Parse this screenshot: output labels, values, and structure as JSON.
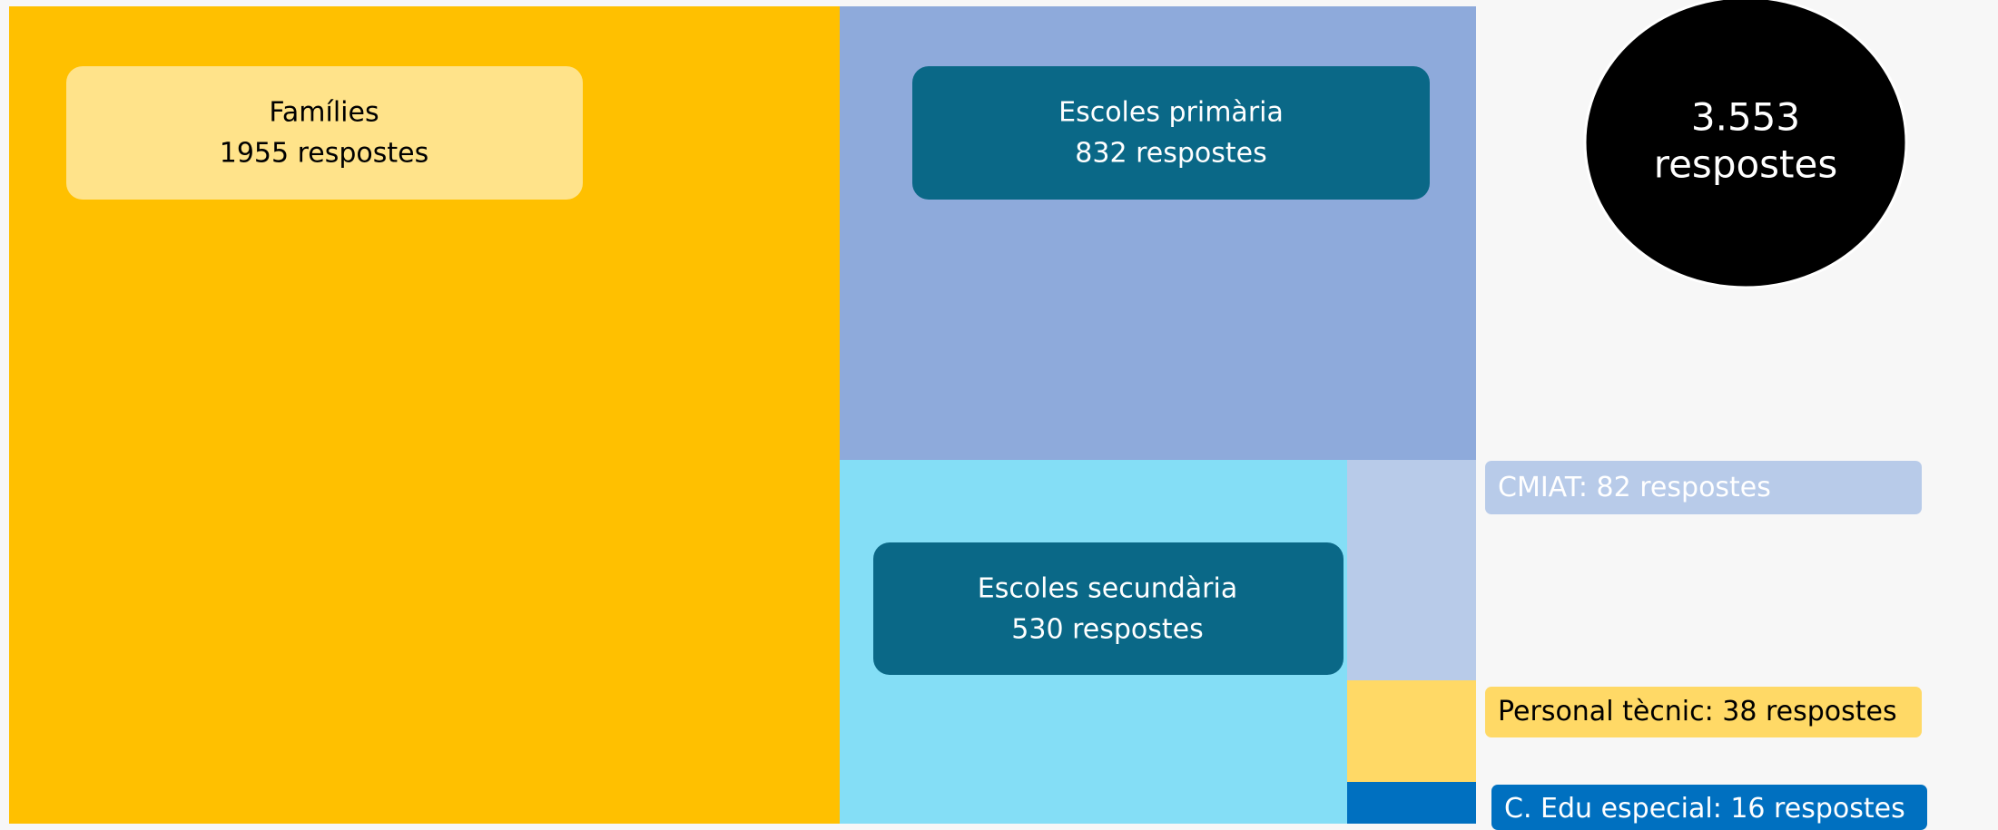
{
  "chart_data": {
    "type": "treemap",
    "categories": [
      "Famílies",
      "Escoles primària",
      "Escoles secundària",
      "CMIAT",
      "Personal tècnic",
      "C. Edu especial"
    ],
    "values": [
      1955,
      832,
      530,
      82,
      38,
      16
    ],
    "value_labels": [
      "1955 respostes",
      "832 respostes",
      "530 respostes",
      ": 82 respostes",
      ": 38 respostes",
      ": 16 respostes"
    ],
    "colors": [
      "#ffc000",
      "#8eaadb",
      "#84def6",
      "#b8cbe9",
      "#ffd966",
      "#0070c0"
    ],
    "total": 3553,
    "total_label": "3.553",
    "total_unit": "respostes"
  }
}
